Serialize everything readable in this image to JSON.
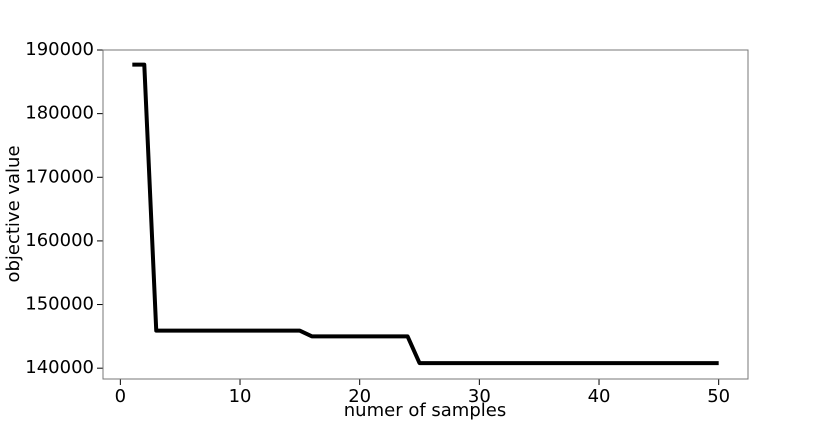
{
  "chart_data": {
    "type": "line",
    "xlabel": "numer of samples",
    "ylabel": "objective value",
    "x": [
      1,
      2,
      3,
      4,
      5,
      6,
      7,
      8,
      9,
      10,
      11,
      12,
      13,
      14,
      15,
      16,
      17,
      18,
      19,
      20,
      21,
      22,
      23,
      24,
      25,
      26,
      27,
      28,
      29,
      30,
      31,
      32,
      33,
      34,
      35,
      36,
      37,
      38,
      39,
      40,
      41,
      42,
      43,
      44,
      45,
      46,
      47,
      48,
      49,
      50
    ],
    "series": [
      {
        "color": "#000000",
        "values": [
          187700,
          187700,
          145900,
          145900,
          145900,
          145900,
          145900,
          145900,
          145900,
          145900,
          145900,
          145900,
          145900,
          145900,
          145900,
          145000,
          145000,
          145000,
          145000,
          145000,
          145000,
          145000,
          145000,
          145000,
          140800,
          140800,
          140800,
          140800,
          140800,
          140800,
          140800,
          140800,
          140800,
          140800,
          140800,
          140800,
          140800,
          140800,
          140800,
          140800,
          140800,
          140800,
          140800,
          140800,
          140800,
          140800,
          140800,
          140800,
          140800,
          140800
        ]
      }
    ],
    "xlim": [
      -1.45,
      52.45
    ],
    "xticks": [
      0,
      10,
      20,
      30,
      40,
      50
    ],
    "ylim": [
      138300,
      190000
    ],
    "yticks": [
      140000,
      150000,
      160000,
      170000,
      180000,
      190000
    ],
    "grid": false
  }
}
